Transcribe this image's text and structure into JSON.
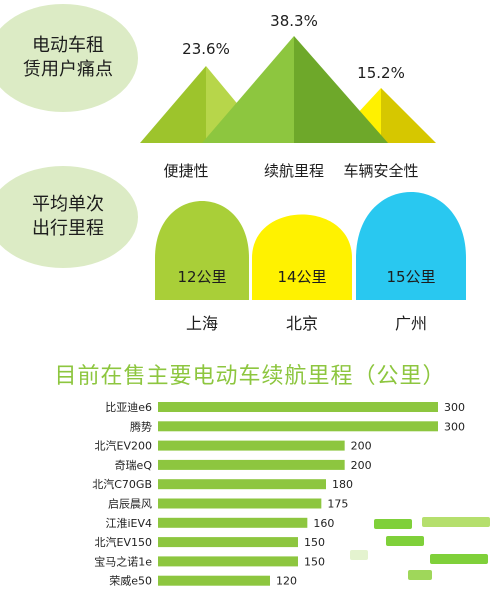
{
  "pain_points": {
    "title_line1": "电动车租",
    "title_line2": "赁用户痛点",
    "items": [
      {
        "label": "便捷性",
        "value": 23.6,
        "value_label": "23.6%"
      },
      {
        "label": "续航里程",
        "value": 38.3,
        "value_label": "38.3%"
      },
      {
        "label": "车辆安全性",
        "value": 15.2,
        "value_label": "15.2%"
      }
    ],
    "colors": {
      "convenience": "#9dc42c",
      "range": "#8dc63f",
      "safety": "#f4e600"
    }
  },
  "trip_distance": {
    "title_line1": "平均单次",
    "title_line2": "出行里程",
    "items": [
      {
        "city": "上海",
        "value_label": "12公里",
        "color": "#a9cf38"
      },
      {
        "city": "北京",
        "value_label": "14公里",
        "color": "#fff200"
      },
      {
        "city": "广州",
        "value_label": "15公里",
        "color": "#29c8f0"
      }
    ]
  },
  "range_chart": {
    "title": "目前在售主要电动车续航里程（公里）"
  },
  "chart_data": {
    "type": "bar",
    "orientation": "horizontal",
    "title": "目前在售主要电动车续航里程（公里）",
    "categories": [
      "比亚迪e6",
      "腾势",
      "北汽EV200",
      "奇瑞eQ",
      "北汽C70GB",
      "启辰晨风",
      "江淮iEV4",
      "北汽EV150",
      "宝马之诺1e",
      "荣威e50"
    ],
    "values": [
      300,
      300,
      200,
      200,
      180,
      175,
      160,
      150,
      150,
      120
    ],
    "xlim": [
      0,
      300
    ],
    "bar_color": "#8dc63f",
    "grid": false
  }
}
